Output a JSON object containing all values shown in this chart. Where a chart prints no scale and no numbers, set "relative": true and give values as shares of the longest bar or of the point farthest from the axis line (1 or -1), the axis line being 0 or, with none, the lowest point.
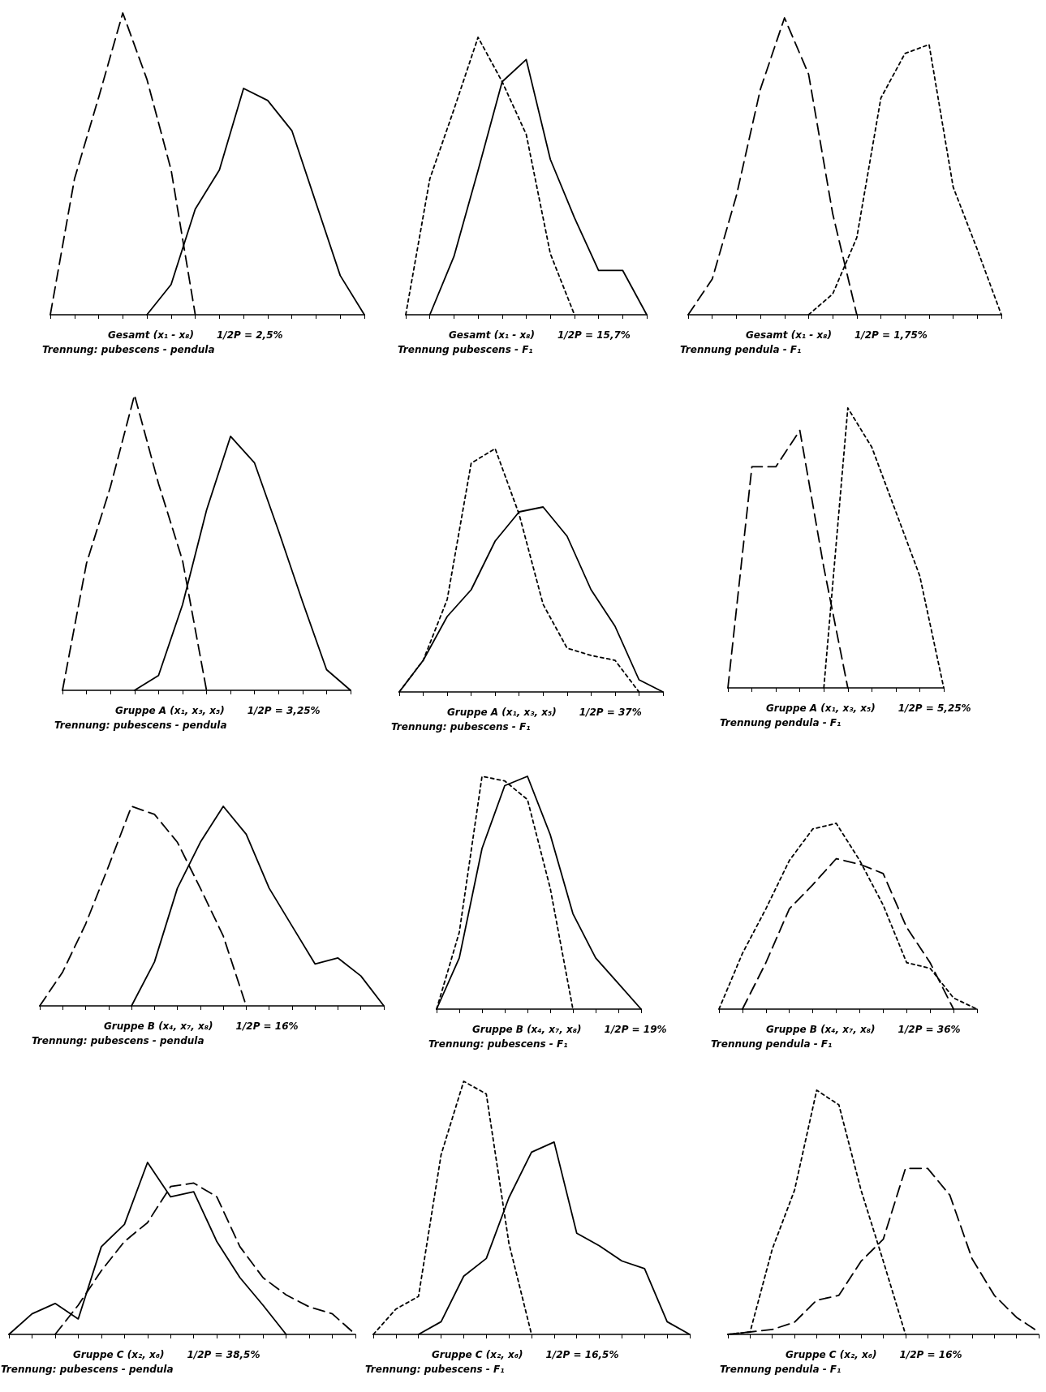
{
  "chart_data": [
    {
      "type": "line",
      "relative": true,
      "xlabel": "Gesamt (x₁ - x₈)",
      "annotations": [
        "1/2P = 2,5%",
        "Trennung: pubescens - pendula"
      ],
      "categories": [
        null,
        null,
        null,
        null,
        null,
        null,
        null,
        null,
        null,
        null,
        null,
        null,
        null,
        null
      ],
      "series": [
        {
          "color": "#000000",
          "line_style": "dashed",
          "values": [
            0,
            0.45,
            0.72,
            1.0,
            0.78,
            0.48,
            0,
            null,
            null,
            null,
            null,
            null,
            null,
            null
          ]
        },
        {
          "color": "#000000",
          "line_style": "solid",
          "values": [
            null,
            null,
            null,
            null,
            0,
            0.1,
            0.35,
            0.48,
            0.75,
            0.71,
            0.61,
            0.37,
            0.13,
            0
          ]
        }
      ]
    },
    {
      "type": "line",
      "relative": true,
      "xlabel": "Gesamt (x₁ - x₈)",
      "annotations": [
        "1/2P = 15,7%",
        "Trennung pubescens - F₁"
      ],
      "categories": [
        null,
        null,
        null,
        null,
        null,
        null,
        null,
        null,
        null,
        null,
        null
      ],
      "series": [
        {
          "color": "#000000",
          "line_style": "dotted",
          "values": [
            0,
            0.49,
            0.74,
            1.0,
            0.84,
            0.65,
            0.22,
            0,
            null,
            null,
            null
          ]
        },
        {
          "color": "#000000",
          "line_style": "solid",
          "values": [
            null,
            0,
            0.21,
            0.52,
            0.84,
            0.92,
            0.56,
            0.35,
            0.16,
            0.16,
            0
          ]
        }
      ]
    },
    {
      "type": "line",
      "relative": true,
      "xlabel": "Gesamt (x₁ - x₈)",
      "annotations": [
        "1/2P = 1,75%",
        "Trennung pendula - F₁"
      ],
      "categories": [
        null,
        null,
        null,
        null,
        null,
        null,
        null,
        null,
        null,
        null,
        null,
        null,
        null,
        null
      ],
      "series": [
        {
          "color": "#000000",
          "line_style": "dashed",
          "values": [
            0,
            0.12,
            0.4,
            0.76,
            1.0,
            0.81,
            0.34,
            0,
            null,
            null,
            null,
            null,
            null,
            null
          ]
        },
        {
          "color": "#000000",
          "line_style": "dotted",
          "values": [
            null,
            null,
            null,
            null,
            null,
            0,
            0.07,
            0.26,
            0.73,
            0.88,
            0.91,
            0.43,
            0.22,
            0
          ]
        }
      ]
    },
    {
      "type": "line",
      "relative": true,
      "xlabel": "Gruppe A (x₁, x₃, x₅)",
      "annotations": [
        "1/2P = 3,25%",
        "Trennung: pubescens - pendula"
      ],
      "categories": [
        null,
        null,
        null,
        null,
        null,
        null,
        null,
        null,
        null,
        null,
        null,
        null,
        null
      ],
      "series": [
        {
          "color": "#000000",
          "line_style": "dashed",
          "values": [
            0,
            0.43,
            0.69,
            1.0,
            0.7,
            0.44,
            0,
            null,
            null,
            null,
            null,
            null,
            null
          ]
        },
        {
          "color": "#000000",
          "line_style": "solid",
          "values": [
            null,
            null,
            null,
            0,
            0.05,
            0.29,
            0.61,
            0.86,
            0.77,
            0.54,
            0.3,
            0.07,
            0
          ]
        }
      ]
    },
    {
      "type": "line",
      "relative": true,
      "xlabel": "Gruppe A (x₁, x₃, x₅)",
      "annotations": [
        "1/2P = 37%",
        "Trennung: pubescens - F₁"
      ],
      "categories": [
        null,
        null,
        null,
        null,
        null,
        null,
        null,
        null,
        null,
        null,
        null,
        null
      ],
      "series": [
        {
          "color": "#000000",
          "line_style": "dotted",
          "values": [
            0,
            0.13,
            0.38,
            0.94,
            1.0,
            0.73,
            0.36,
            0.18,
            0.15,
            0.13,
            0,
            null
          ]
        },
        {
          "color": "#000000",
          "line_style": "solid",
          "values": [
            0,
            0.13,
            0.31,
            0.42,
            0.62,
            0.74,
            0.76,
            0.64,
            0.42,
            0.27,
            0.05,
            0
          ]
        }
      ]
    },
    {
      "type": "line",
      "relative": true,
      "xlabel": "Gruppe A (x₁, x₃, x₅)",
      "annotations": [
        "1/2P = 5,25%",
        "Trennung pendula - F₁"
      ],
      "categories": [
        null,
        null,
        null,
        null,
        null,
        null,
        null,
        null,
        null,
        null
      ],
      "series": [
        {
          "color": "#000000",
          "line_style": "dashed",
          "values": [
            0,
            0.79,
            0.79,
            0.92,
            0.43,
            0,
            null,
            null,
            null,
            null
          ]
        },
        {
          "color": "#000000",
          "line_style": "dotted",
          "values": [
            null,
            null,
            null,
            null,
            0,
            1.0,
            0.86,
            0.63,
            0.4,
            0
          ]
        }
      ]
    },
    {
      "type": "line",
      "relative": true,
      "xlabel": "Gruppe B (x₄, x₇, x₈)",
      "annotations": [
        "1/2P = 16%",
        "Trennung: pubescens - pendula"
      ],
      "categories": [
        null,
        null,
        null,
        null,
        null,
        null,
        null,
        null,
        null,
        null,
        null,
        null,
        null,
        null,
        null,
        null
      ],
      "series": [
        {
          "color": "#000000",
          "line_style": "dashed",
          "values": [
            0,
            0.17,
            0.41,
            0.7,
            1.0,
            0.96,
            0.82,
            0.59,
            0.35,
            0,
            null,
            null,
            null,
            null,
            null,
            null
          ]
        },
        {
          "color": "#000000",
          "line_style": "solid",
          "values": [
            null,
            null,
            null,
            null,
            0,
            0.22,
            0.59,
            0.82,
            1.0,
            0.86,
            0.59,
            0.4,
            0.21,
            0.24,
            0.15,
            0
          ]
        }
      ]
    },
    {
      "type": "line",
      "relative": true,
      "xlabel": "Gruppe B (x₄, x₇, x₈)",
      "annotations": [
        "1/2P = 19%",
        "Trennung: pubescens - F₁"
      ],
      "categories": [
        null,
        null,
        null,
        null,
        null,
        null,
        null,
        null,
        null,
        null
      ],
      "series": [
        {
          "color": "#000000",
          "line_style": "dotted",
          "values": [
            0,
            0.33,
            1.0,
            0.98,
            0.9,
            0.52,
            0,
            null,
            null,
            null
          ]
        },
        {
          "color": "#000000",
          "line_style": "solid",
          "values": [
            0,
            0.22,
            0.69,
            0.96,
            1.0,
            0.75,
            0.41,
            0.22,
            0.11,
            0
          ]
        }
      ]
    },
    {
      "type": "line",
      "relative": true,
      "xlabel": "Gruppe B (x₄, x₇, x₈)",
      "annotations": [
        "1/2P = 36%",
        "Trennung pendula - F₁"
      ],
      "categories": [
        null,
        null,
        null,
        null,
        null,
        null,
        null,
        null,
        null,
        null,
        null,
        null
      ],
      "series": [
        {
          "color": "#000000",
          "line_style": "dotted",
          "values": [
            0,
            0.3,
            0.54,
            0.8,
            0.97,
            1.0,
            0.8,
            0.56,
            0.25,
            0.22,
            0.06,
            0
          ]
        },
        {
          "color": "#000000",
          "line_style": "dashed",
          "values": [
            null,
            0,
            0.25,
            0.54,
            0.67,
            0.81,
            0.78,
            0.73,
            0.44,
            0.25,
            0,
            null
          ]
        }
      ]
    },
    {
      "type": "line",
      "relative": true,
      "xlabel": "Gruppe C (x₂, x₆)",
      "annotations": [
        "1/2P = 38,5%",
        "Trennung: pubescens - pendula"
      ],
      "categories": [
        null,
        null,
        null,
        null,
        null,
        null,
        null,
        null,
        null,
        null,
        null,
        null,
        null,
        null,
        null,
        null
      ],
      "series": [
        {
          "color": "#000000",
          "line_style": "solid",
          "values": [
            0,
            0.12,
            0.18,
            0.09,
            0.51,
            0.64,
            1.0,
            0.8,
            0.83,
            0.54,
            0.33,
            0.17,
            0,
            null,
            null,
            null
          ]
        },
        {
          "color": "#000000",
          "line_style": "dashed",
          "values": [
            null,
            null,
            0,
            0.17,
            0.37,
            0.54,
            0.65,
            0.86,
            0.88,
            0.8,
            0.51,
            0.33,
            0.23,
            0.16,
            0.12,
            0
          ]
        }
      ]
    },
    {
      "type": "line",
      "relative": true,
      "xlabel": "Gruppe C (x₂, x₆)",
      "annotations": [
        "1/2P = 16,5%",
        "Trennung: pubescens - F₁"
      ],
      "categories": [
        null,
        null,
        null,
        null,
        null,
        null,
        null,
        null,
        null,
        null,
        null,
        null,
        null,
        null,
        null
      ],
      "series": [
        {
          "color": "#000000",
          "line_style": "dotted",
          "values": [
            0,
            0.1,
            0.15,
            0.71,
            1.0,
            0.95,
            0.36,
            0,
            null,
            null,
            null,
            null,
            null,
            null,
            null
          ]
        },
        {
          "color": "#000000",
          "line_style": "solid",
          "values": [
            null,
            null,
            0,
            0.05,
            0.23,
            0.3,
            0.54,
            0.72,
            0.76,
            0.4,
            0.35,
            0.29,
            0.26,
            0.05,
            0
          ]
        }
      ]
    },
    {
      "type": "line",
      "relative": true,
      "xlabel": "Gruppe C (x₂, x₆)",
      "annotations": [
        "1/2P = 16%",
        "Trennung pendula - F₁"
      ],
      "categories": [
        null,
        null,
        null,
        null,
        null,
        null,
        null,
        null,
        null,
        null,
        null,
        null,
        null,
        null,
        null
      ],
      "series": [
        {
          "color": "#000000",
          "line_style": "dotted",
          "values": [
            0,
            0.01,
            0.35,
            0.59,
            1.0,
            0.94,
            0.59,
            0.3,
            0,
            null,
            null,
            null,
            null,
            null,
            null
          ]
        },
        {
          "color": "#000000",
          "line_style": "dashed",
          "values": [
            0,
            0.01,
            0.02,
            0.05,
            0.14,
            0.16,
            0.3,
            0.39,
            0.68,
            0.68,
            0.57,
            0.31,
            0.16,
            0.07,
            0.01
          ]
        }
      ]
    }
  ]
}
